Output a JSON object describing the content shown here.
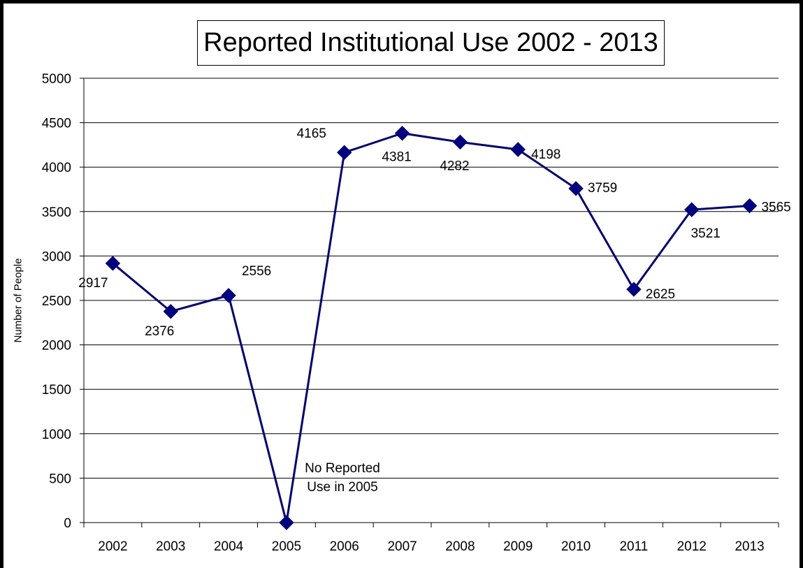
{
  "chart_data": {
    "type": "line",
    "title": "Reported Institutional Use 2002 - 2013",
    "xlabel": "",
    "ylabel": "Number of People",
    "categories": [
      "2002",
      "2003",
      "2004",
      "2005",
      "2006",
      "2007",
      "2008",
      "2009",
      "2010",
      "2011",
      "2012",
      "2013"
    ],
    "series": [
      {
        "values": [
          2917,
          2376,
          2556,
          0,
          4165,
          4381,
          4282,
          4198,
          3759,
          2625,
          3521,
          3565
        ]
      }
    ],
    "data_labels": [
      "2917",
      "2376",
      "2556",
      "",
      "4165",
      "4381",
      "4282",
      "4198",
      "3759",
      "2625",
      "3521",
      "3565"
    ],
    "ylim": [
      0,
      5000
    ],
    "yticks": [
      "0",
      "500",
      "1000",
      "1500",
      "2000",
      "2500",
      "3000",
      "3500",
      "4000",
      "4500",
      "5000"
    ],
    "annotation": "No  Reported\nUse in 2005",
    "grid": true,
    "legend": "none",
    "line_color": "#000080",
    "marker": "diamond"
  }
}
